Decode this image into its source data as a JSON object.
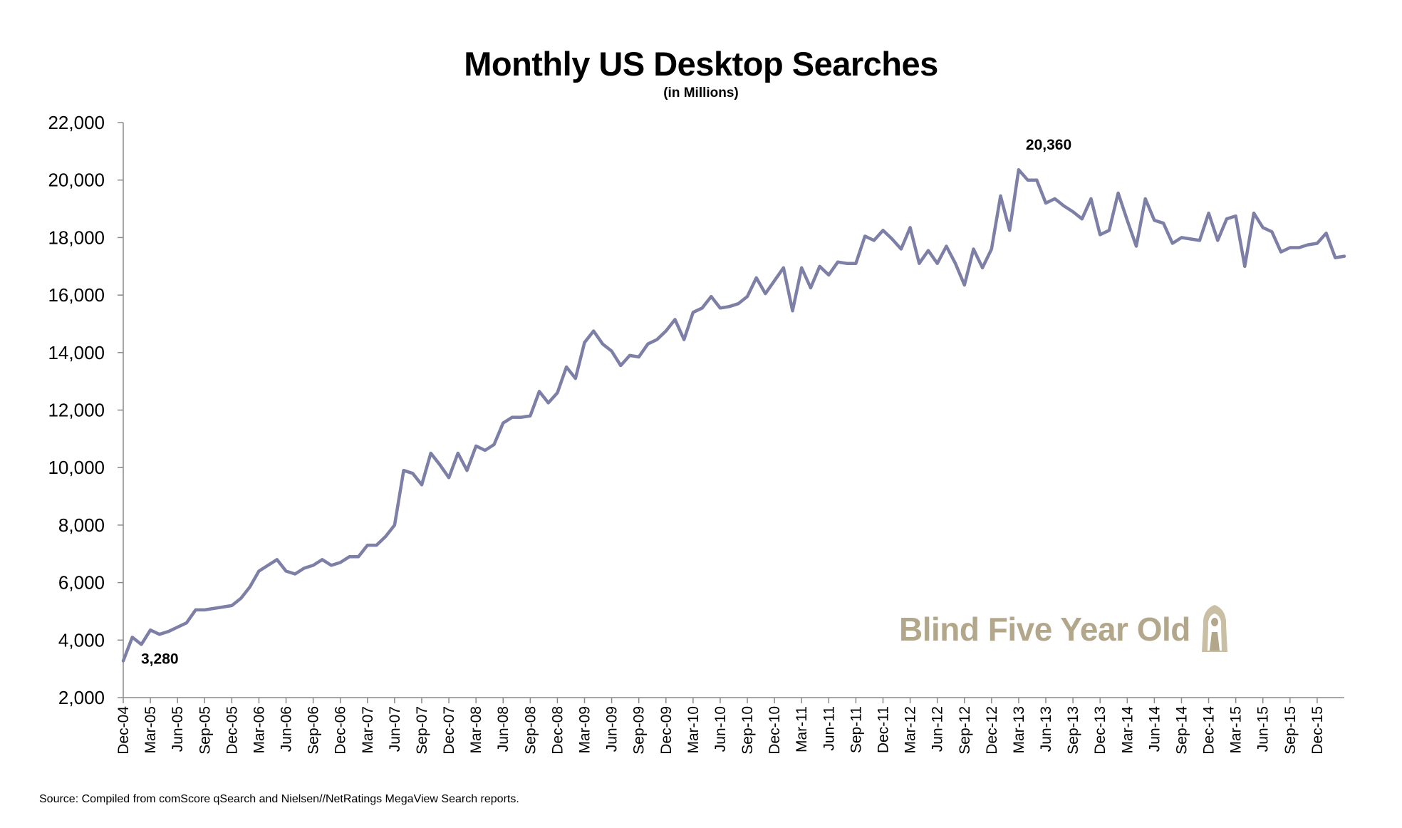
{
  "chart_data": {
    "type": "line",
    "title": "Monthly US Desktop Searches",
    "subtitle": "(in Millions)",
    "xlabel": "",
    "ylabel": "",
    "ylim": [
      2000,
      22000
    ],
    "yticks": [
      "2,000",
      "4,000",
      "6,000",
      "8,000",
      "10,000",
      "12,000",
      "14,000",
      "16,000",
      "18,000",
      "20,000",
      "22,000"
    ],
    "xticks": [
      "Dec-04",
      "Mar-05",
      "Jun-05",
      "Sep-05",
      "Dec-05",
      "Mar-06",
      "Jun-06",
      "Sep-06",
      "Dec-06",
      "Mar-07",
      "Jun-07",
      "Sep-07",
      "Dec-07",
      "Mar-08",
      "Jun-08",
      "Sep-08",
      "Dec-08",
      "Mar-09",
      "Jun-09",
      "Sep-09",
      "Dec-09",
      "Mar-10",
      "Jun-10",
      "Sep-10",
      "Dec-10",
      "Mar-11",
      "Jun-11",
      "Sep-11",
      "Dec-11",
      "Mar-12",
      "Jun-12",
      "Sep-12",
      "Dec-12",
      "Mar-13",
      "Jun-13",
      "Sep-13",
      "Dec-13",
      "Mar-14",
      "Jun-14",
      "Sep-14",
      "Dec-14",
      "Mar-15",
      "Jun-15",
      "Sep-15",
      "Dec-15"
    ],
    "x_start": "Dec-04",
    "x_end": "Dec-15",
    "grid": false,
    "line_color": "#7d7fa7",
    "series": [
      {
        "values": [
          3280,
          4100,
          3850,
          4350,
          4200,
          4300,
          4450,
          4600,
          5050,
          5050,
          5100,
          5150,
          5200,
          5450,
          5850,
          6400,
          6600,
          6800,
          6400,
          6300,
          6500,
          6600,
          6800,
          6600,
          6700,
          6900,
          6900,
          7300,
          7300,
          7600,
          8000,
          9900,
          9800,
          9400,
          10500,
          10100,
          9650,
          10500,
          9900,
          10750,
          10600,
          10800,
          11550,
          11750,
          11750,
          11800,
          12650,
          12250,
          12600,
          13500,
          13100,
          14350,
          14750,
          14300,
          14050,
          13550,
          13900,
          13850,
          14300,
          14450,
          14750,
          15150,
          14450,
          15400,
          15550,
          15950,
          15550,
          15600,
          15700,
          15950,
          16600,
          16050,
          16500,
          16950,
          15450,
          16950,
          16250,
          17000,
          16700,
          17150,
          17100,
          17100,
          18050,
          17900,
          18250,
          17950,
          17600,
          18350,
          17100,
          17550,
          17100,
          17700,
          17100,
          16350,
          17600,
          16950,
          17600,
          19450,
          18250,
          20360,
          20000,
          20000,
          19200,
          19350,
          19100,
          18900,
          18650,
          19350,
          18100,
          18250,
          19550,
          18600,
          17700,
          19350,
          18600,
          18500,
          17800,
          18000,
          17950,
          17900,
          18850,
          17900,
          18650,
          18750,
          17000,
          18850,
          18350,
          18200,
          17500,
          17650,
          17650,
          17750,
          17800,
          18150,
          17300,
          17350
        ]
      }
    ],
    "annotations": [
      {
        "label": "3,280",
        "value": 3280,
        "at": "Dec-04"
      },
      {
        "label": "20,360",
        "value": 20360,
        "at": "Mar-13"
      }
    ]
  },
  "source": "Source: Compiled from comScore qSearch and Nielsen//NetRatings MegaView Search reports.",
  "watermark": {
    "text": "Blind Five Year Old",
    "color": "#b2a78b"
  }
}
